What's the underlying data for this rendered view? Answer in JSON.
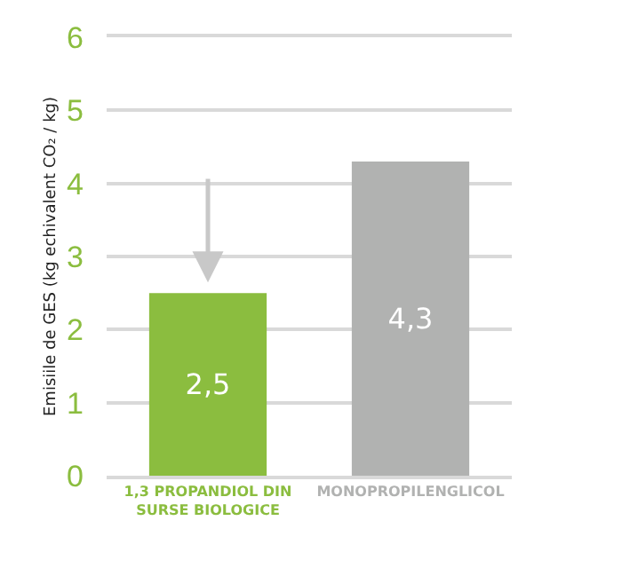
{
  "chart_data": {
    "type": "bar",
    "ylabel": "Emisiile de GES (kg echivalent CO₂ / kg)",
    "categories": [
      "1,3 PROPANDIOL DIN SURSE BIOLOGICE",
      "MONOPROPILENGLICOL"
    ],
    "values": [
      2.5,
      4.3
    ],
    "colors": [
      "#8bbd3f",
      "#b1b2b1"
    ],
    "value_labels": [
      "2,5",
      "4,3"
    ],
    "ylim": [
      0,
      6
    ],
    "yticks": [
      0,
      1,
      2,
      3,
      4,
      5,
      6
    ],
    "grid": "y",
    "legend": false
  }
}
